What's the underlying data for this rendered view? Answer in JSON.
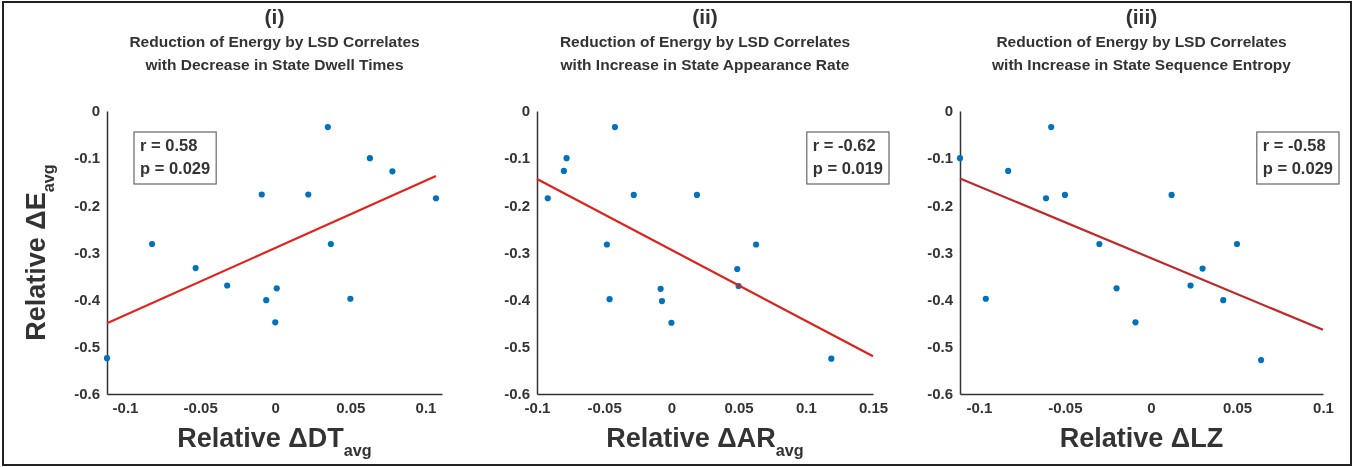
{
  "chart_data": [
    {
      "type": "scatter",
      "title": "(i)",
      "subtitle": "Reduction of Energy by LSD Correlates\nwith Decrease in State Dwell Times",
      "xlabel": "Relative ΔDT$_{avg}$",
      "ylabel": "Relative ΔE$_{avg}$",
      "annotations": [
        "r = 0.58",
        "p = 0.029"
      ],
      "xlim": [
        -0.112,
        0.111
      ],
      "xticks": [
        -0.1,
        -0.05,
        0,
        0.05,
        0.1
      ],
      "ylim": [
        -0.6,
        0
      ],
      "yticks": [
        -0.6,
        -0.5,
        -0.4,
        -0.3,
        -0.2,
        -0.1,
        0
      ],
      "grid": false,
      "series": [
        {
          "marker": "circle",
          "color": "#0072bd",
          "x": [
            0.035,
            0.063,
            0.078,
            0.107,
            -0.009,
            0.022,
            -0.082,
            -0.053,
            -0.032,
            0.001,
            -0.006,
            0.05,
            0.037,
            0,
            -0.112
          ],
          "values": [
            -0.034,
            -0.1,
            -0.128,
            -0.185,
            -0.177,
            -0.177,
            -0.282,
            -0.333,
            -0.37,
            -0.376,
            -0.401,
            -0.398,
            -0.282,
            -0.448,
            -0.524
          ]
        },
        {
          "type": "line",
          "marker": "none",
          "color": "#e3231b",
          "x": [
            -0.112,
            0.107
          ],
          "values": [
            -0.45,
            -0.138
          ]
        }
      ]
    },
    {
      "type": "scatter",
      "title": "(ii)",
      "subtitle": "Reduction of Energy by LSD Correlates\nwith Increase in State Appearance Rate",
      "xlabel": "Relative ΔAR$_{avg}$",
      "annotations": [
        "r = -0.62",
        "p = 0.019"
      ],
      "xlim": [
        -0.1,
        0.15
      ],
      "xticks": [
        -0.1,
        -0.05,
        0,
        0.05,
        0.1,
        0.15
      ],
      "ylim": [
        -0.6,
        0
      ],
      "yticks": [
        -0.6,
        -0.5,
        -0.4,
        -0.3,
        -0.2,
        -0.1,
        0
      ],
      "grid": false,
      "series": [
        {
          "marker": "circle",
          "color": "#0072bd",
          "x": [
            -0.042,
            -0.078,
            -0.08,
            -0.092,
            -0.028,
            0.019,
            -0.048,
            0.063,
            0.049,
            0.05,
            -0.008,
            -0.007,
            -0.046,
            0,
            0.119
          ],
          "values": [
            -0.034,
            -0.1,
            -0.127,
            -0.185,
            -0.178,
            -0.178,
            -0.283,
            -0.283,
            -0.335,
            -0.371,
            -0.377,
            -0.403,
            -0.399,
            -0.449,
            -0.525
          ]
        },
        {
          "type": "line",
          "marker": "none",
          "color": "#e0201b",
          "x": [
            -0.1,
            0.15
          ],
          "values": [
            -0.144,
            -0.52
          ]
        }
      ]
    },
    {
      "type": "scatter",
      "title": "(iii)",
      "subtitle": "Reduction of Energy by LSD Correlates\nwith Increase in State Sequence Entropy",
      "xlabel": "Relative ΔLZ",
      "annotations": [
        "r = -0.58",
        "p = 0.029"
      ],
      "xlim": [
        -0.111,
        0.1
      ],
      "xticks": [
        -0.1,
        -0.05,
        0,
        0.05,
        0.1
      ],
      "ylim": [
        -0.6,
        0
      ],
      "yticks": [
        -0.6,
        -0.5,
        -0.4,
        -0.3,
        -0.2,
        -0.1,
        0
      ],
      "grid": false,
      "series": [
        {
          "marker": "circle",
          "color": "#0072bd",
          "x": [
            -0.058,
            -0.111,
            -0.083,
            -0.061,
            -0.05,
            0.012,
            -0.03,
            0.05,
            0.03,
            0.023,
            -0.02,
            0.042,
            -0.096,
            -0.009,
            0.064
          ],
          "values": [
            -0.034,
            -0.1,
            -0.127,
            -0.185,
            -0.178,
            -0.178,
            -0.282,
            -0.282,
            -0.334,
            -0.37,
            -0.376,
            -0.401,
            -0.398,
            -0.448,
            -0.528
          ]
        },
        {
          "type": "line",
          "marker": "none",
          "color": "#c0282a",
          "x": [
            -0.111,
            0.1
          ],
          "values": [
            -0.143,
            -0.464
          ]
        }
      ]
    }
  ]
}
